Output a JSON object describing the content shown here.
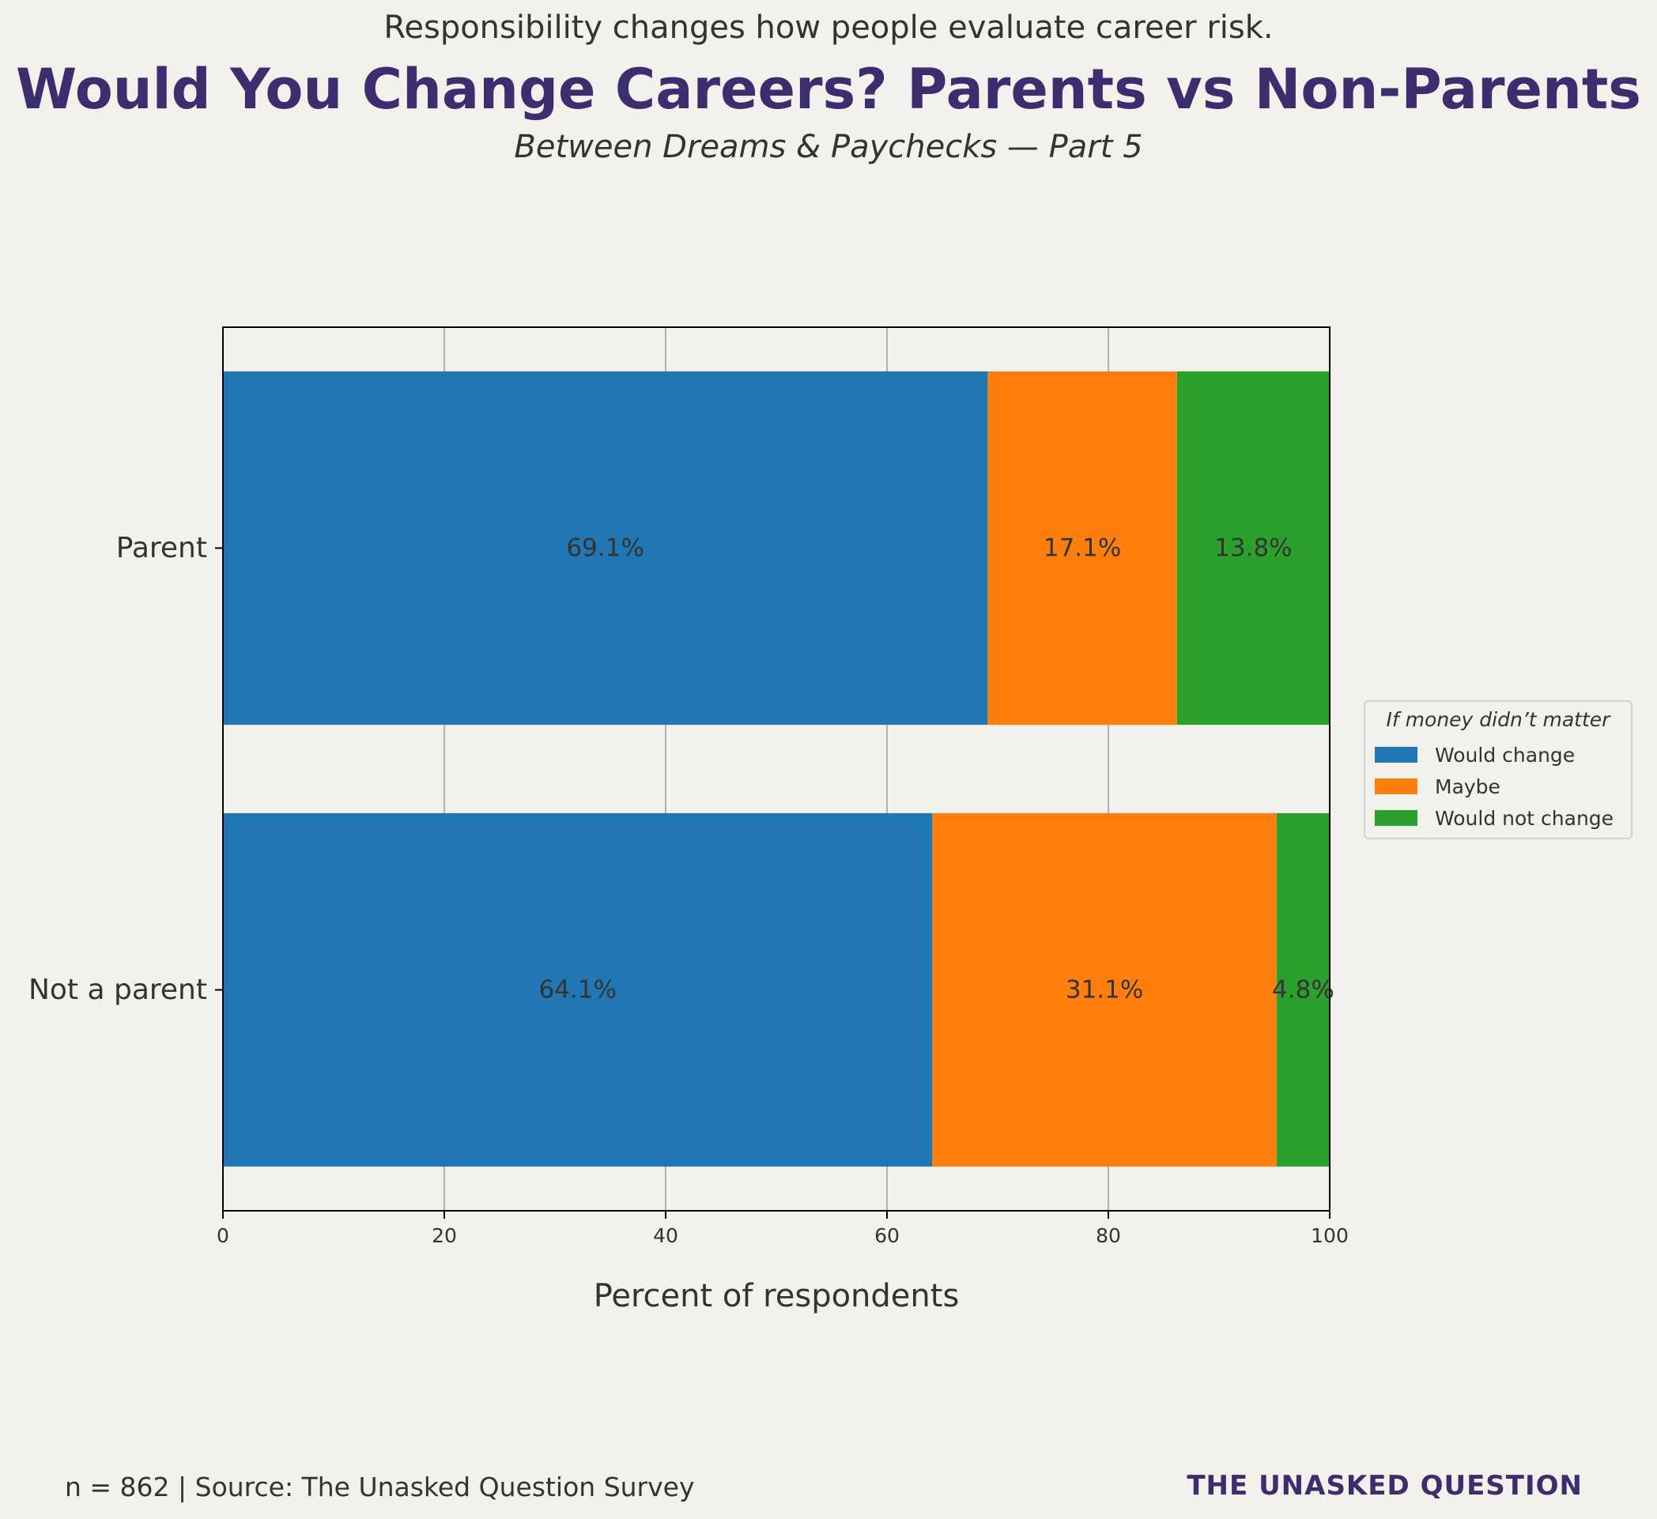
{
  "header": {
    "kicker": "Responsibility changes how people evaluate career risk.",
    "title": "Would You Change Careers? Parents vs Non-Parents",
    "subtitle": "Between Dreams & Paychecks — Part 5"
  },
  "footer": {
    "note": "n = 862 | Source: The Unasked Question Survey",
    "brand": "THE UNASKED QUESTION"
  },
  "chart_data": {
    "type": "bar",
    "orientation": "horizontal",
    "stacked": true,
    "categories": [
      "Parent",
      "Not a parent"
    ],
    "series": [
      {
        "name": "Would change",
        "values": [
          69.1,
          64.1
        ],
        "color": "#2077b4"
      },
      {
        "name": "Maybe",
        "values": [
          17.1,
          31.1
        ],
        "color": "#ff7f0e"
      },
      {
        "name": "Would not change",
        "values": [
          13.8,
          4.8
        ],
        "color": "#2ca02c"
      }
    ],
    "data_labels": [
      [
        "69.1%",
        "64.1%"
      ],
      [
        "17.1%",
        "31.1%"
      ],
      [
        "13.8%",
        "4.8%"
      ]
    ],
    "xlabel": "Percent of respondents",
    "ylabel": "",
    "xlim": [
      0,
      100
    ],
    "xticks": [
      0,
      20,
      40,
      60,
      80,
      100
    ],
    "grid": "vertical",
    "legend": {
      "title": "If money didn’t matter",
      "placement": "right"
    }
  }
}
